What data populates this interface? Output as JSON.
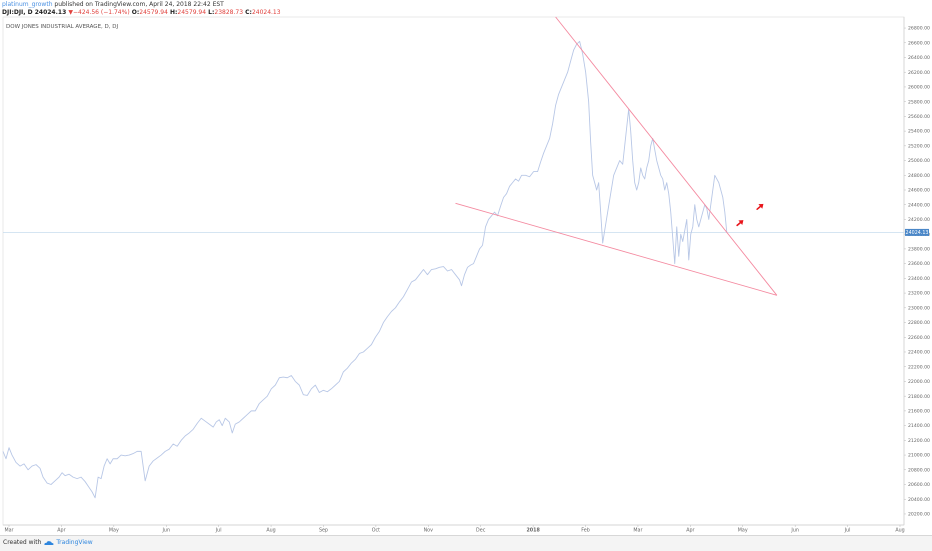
{
  "header": {
    "author": "platinum_growth",
    "published": "published on TradingView.com, April 24, 2018 22:42 EST",
    "symbol": "DJI:DJI, D",
    "last": "24024.13",
    "change_arrow": "▼",
    "change": "−424.56 (−1.74%)",
    "o_label": "O:",
    "o_value": "24579.94",
    "h_label": "H:",
    "h_value": "24579.94",
    "l_label": "L:",
    "l_value": "23828.73",
    "c_label": "C:",
    "c_value": "24024.13"
  },
  "footer": {
    "created": "Created with",
    "brand": "TradingView"
  },
  "chart_data": {
    "type": "line",
    "title": "DOW JONES INDUSTRIAL AVERAGE, D, DJ",
    "colors": {
      "price": "#b8c7e6",
      "trendline": "#f48aa0",
      "arrow": "#e8151b",
      "last_line": "#bcd6ea",
      "last_label_bg": "#4a87c8"
    },
    "x_labels": [
      "Mar",
      "Apr",
      "May",
      "Jun",
      "Jul",
      "Aug",
      "Sep",
      "Oct",
      "Nov",
      "Dec",
      "2018",
      "Feb",
      "Mar",
      "Apr",
      "May",
      "Jun",
      "Jul",
      "Aug"
    ],
    "y_ticks": [
      "26800.00",
      "26600.00",
      "26400.00",
      "26200.00",
      "26000.00",
      "25800.00",
      "25600.00",
      "25400.00",
      "25200.00",
      "25000.00",
      "24800.00",
      "24600.00",
      "24400.00",
      "24200.00",
      "24000.00",
      "23800.00",
      "23600.00",
      "23400.00",
      "23200.00",
      "23000.00",
      "22800.00",
      "22600.00",
      "22400.00",
      "22200.00",
      "22000.00",
      "21800.00",
      "21600.00",
      "21400.00",
      "21200.00",
      "21000.00",
      "20800.00",
      "20600.00",
      "20400.00",
      "20200.00"
    ],
    "ylim": [
      20050,
      26950
    ],
    "last_value": "24024.13",
    "x_domain": [
      0,
      900
    ],
    "series": [
      {
        "values": [
          [
            0,
            21050
          ],
          [
            3,
            20950
          ],
          [
            6,
            21100
          ],
          [
            9,
            21000
          ],
          [
            13,
            20900
          ],
          [
            17,
            20850
          ],
          [
            21,
            20880
          ],
          [
            25,
            20800
          ],
          [
            29,
            20850
          ],
          [
            33,
            20870
          ],
          [
            37,
            20820
          ],
          [
            40,
            20700
          ],
          [
            44,
            20620
          ],
          [
            48,
            20600
          ],
          [
            52,
            20650
          ],
          [
            56,
            20700
          ],
          [
            59,
            20760
          ],
          [
            62,
            20720
          ],
          [
            66,
            20740
          ],
          [
            70,
            20700
          ],
          [
            74,
            20680
          ],
          [
            78,
            20700
          ],
          [
            82,
            20640
          ],
          [
            86,
            20560
          ],
          [
            89,
            20500
          ],
          [
            92,
            20420
          ],
          [
            95,
            20700
          ],
          [
            98,
            20680
          ],
          [
            101,
            20850
          ],
          [
            104,
            20950
          ],
          [
            107,
            20880
          ],
          [
            110,
            20950
          ],
          [
            114,
            20950
          ],
          [
            118,
            21000
          ],
          [
            122,
            20990
          ],
          [
            126,
            21000
          ],
          [
            130,
            21020
          ],
          [
            134,
            21050
          ],
          [
            138,
            21050
          ],
          [
            142,
            20650
          ],
          [
            146,
            20850
          ],
          [
            150,
            20920
          ],
          [
            154,
            20960
          ],
          [
            158,
            21000
          ],
          [
            162,
            21050
          ],
          [
            166,
            21080
          ],
          [
            170,
            21150
          ],
          [
            174,
            21120
          ],
          [
            178,
            21200
          ],
          [
            182,
            21260
          ],
          [
            186,
            21300
          ],
          [
            190,
            21350
          ],
          [
            194,
            21430
          ],
          [
            198,
            21500
          ],
          [
            202,
            21460
          ],
          [
            206,
            21420
          ],
          [
            210,
            21380
          ],
          [
            213,
            21450
          ],
          [
            216,
            21480
          ],
          [
            219,
            21400
          ],
          [
            222,
            21500
          ],
          [
            226,
            21450
          ],
          [
            229,
            21300
          ],
          [
            232,
            21420
          ],
          [
            236,
            21450
          ],
          [
            240,
            21500
          ],
          [
            244,
            21550
          ],
          [
            248,
            21600
          ],
          [
            252,
            21600
          ],
          [
            256,
            21700
          ],
          [
            260,
            21750
          ],
          [
            264,
            21800
          ],
          [
            268,
            21900
          ],
          [
            272,
            21950
          ],
          [
            276,
            22050
          ],
          [
            280,
            22060
          ],
          [
            284,
            22050
          ],
          [
            288,
            22080
          ],
          [
            292,
            22000
          ],
          [
            296,
            21950
          ],
          [
            300,
            21820
          ],
          [
            304,
            21810
          ],
          [
            308,
            21900
          ],
          [
            312,
            21950
          ],
          [
            316,
            21850
          ],
          [
            320,
            21880
          ],
          [
            324,
            21860
          ],
          [
            328,
            21900
          ],
          [
            332,
            21950
          ],
          [
            336,
            22000
          ],
          [
            340,
            22130
          ],
          [
            344,
            22180
          ],
          [
            348,
            22250
          ],
          [
            352,
            22300
          ],
          [
            356,
            22380
          ],
          [
            360,
            22400
          ],
          [
            364,
            22450
          ],
          [
            368,
            22500
          ],
          [
            372,
            22600
          ],
          [
            376,
            22680
          ],
          [
            380,
            22800
          ],
          [
            384,
            22880
          ],
          [
            388,
            22950
          ],
          [
            392,
            23000
          ],
          [
            396,
            23080
          ],
          [
            400,
            23150
          ],
          [
            404,
            23250
          ],
          [
            408,
            23350
          ],
          [
            412,
            23380
          ],
          [
            416,
            23450
          ],
          [
            420,
            23520
          ],
          [
            424,
            23450
          ],
          [
            428,
            23520
          ],
          [
            432,
            23530
          ],
          [
            436,
            23550
          ],
          [
            440,
            23560
          ],
          [
            444,
            23500
          ],
          [
            448,
            23520
          ],
          [
            452,
            23450
          ],
          [
            456,
            23380
          ],
          [
            458,
            23300
          ],
          [
            461,
            23450
          ],
          [
            464,
            23550
          ],
          [
            467,
            23580
          ],
          [
            470,
            23600
          ],
          [
            473,
            23700
          ],
          [
            476,
            23800
          ],
          [
            479,
            23850
          ],
          [
            482,
            24100
          ],
          [
            485,
            24200
          ],
          [
            488,
            24250
          ],
          [
            491,
            24300
          ],
          [
            494,
            24250
          ],
          [
            497,
            24380
          ],
          [
            500,
            24500
          ],
          [
            503,
            24550
          ],
          [
            506,
            24650
          ],
          [
            509,
            24700
          ],
          [
            512,
            24750
          ],
          [
            515,
            24720
          ],
          [
            518,
            24800
          ],
          [
            522,
            24800
          ],
          [
            526,
            24780
          ],
          [
            530,
            24850
          ],
          [
            534,
            24850
          ],
          [
            537,
            24980
          ],
          [
            540,
            25100
          ],
          [
            543,
            25200
          ],
          [
            546,
            25300
          ],
          [
            549,
            25500
          ],
          [
            552,
            25750
          ],
          [
            555,
            25900
          ],
          [
            558,
            26000
          ],
          [
            561,
            26100
          ],
          [
            564,
            26200
          ],
          [
            567,
            26350
          ],
          [
            570,
            26500
          ],
          [
            573,
            26580
          ],
          [
            576,
            26620
          ],
          [
            579,
            26450
          ],
          [
            582,
            26200
          ],
          [
            585,
            25800
          ],
          [
            587,
            25250
          ],
          [
            589,
            24800
          ],
          [
            591,
            24700
          ],
          [
            593,
            24600
          ],
          [
            595,
            24700
          ],
          [
            597,
            24300
          ],
          [
            599,
            23880
          ],
          [
            601,
            24050
          ],
          [
            604,
            24300
          ],
          [
            607,
            24550
          ],
          [
            610,
            24800
          ],
          [
            613,
            24900
          ],
          [
            616,
            25000
          ],
          [
            619,
            24950
          ],
          [
            621,
            25200
          ],
          [
            623,
            25450
          ],
          [
            625,
            25700
          ],
          [
            627,
            25400
          ],
          [
            629,
            25000
          ],
          [
            631,
            24700
          ],
          [
            633,
            24600
          ],
          [
            635,
            24700
          ],
          [
            637,
            24900
          ],
          [
            639,
            24800
          ],
          [
            641,
            24750
          ],
          [
            643,
            24900
          ],
          [
            645,
            25000
          ],
          [
            647,
            25200
          ],
          [
            649,
            25300
          ],
          [
            651,
            25150
          ],
          [
            653,
            25000
          ],
          [
            655,
            24900
          ],
          [
            657,
            24800
          ],
          [
            659,
            24750
          ],
          [
            661,
            24600
          ],
          [
            663,
            24700
          ],
          [
            665,
            24550
          ],
          [
            667,
            24300
          ],
          [
            669,
            23950
          ],
          [
            671,
            23600
          ],
          [
            673,
            24100
          ],
          [
            675,
            23700
          ],
          [
            677,
            24000
          ],
          [
            679,
            23900
          ],
          [
            681,
            24050
          ],
          [
            683,
            24200
          ],
          [
            685,
            23650
          ],
          [
            687,
            24000
          ],
          [
            689,
            24100
          ],
          [
            691,
            24400
          ],
          [
            693,
            24200
          ],
          [
            695,
            24100
          ],
          [
            697,
            24200
          ],
          [
            699,
            24300
          ],
          [
            701,
            24400
          ],
          [
            703,
            24350
          ],
          [
            705,
            24200
          ],
          [
            707,
            24400
          ],
          [
            709,
            24600
          ],
          [
            711,
            24800
          ],
          [
            713,
            24750
          ],
          [
            715,
            24700
          ],
          [
            717,
            24600
          ],
          [
            719,
            24500
          ],
          [
            721,
            24300
          ],
          [
            723,
            24024
          ]
        ]
      }
    ],
    "trendlines": [
      {
        "from": [
          552,
          26950
        ],
        "to": [
          773,
          23170
        ]
      },
      {
        "from": [
          452,
          24420
        ],
        "to": [
          773,
          23170
        ]
      }
    ],
    "arrows": [
      {
        "x": 736,
        "y": 24150
      },
      {
        "x": 756,
        "y": 24370
      }
    ]
  }
}
